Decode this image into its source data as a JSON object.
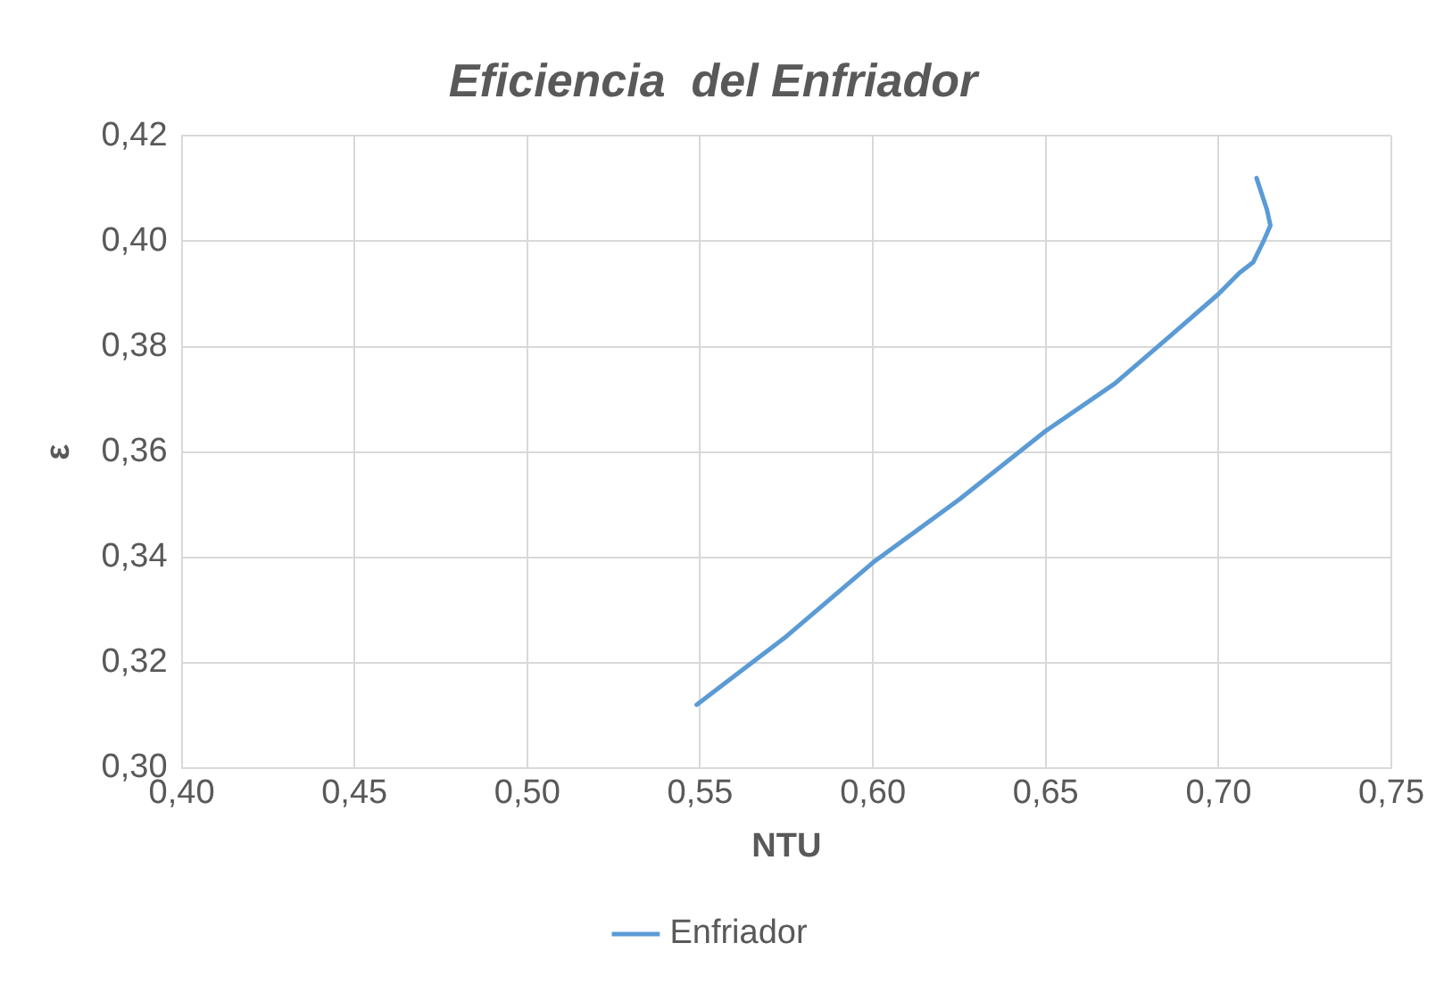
{
  "chart_data": {
    "type": "line",
    "title": "Eficiencia  del Enfriador",
    "xlabel": "NTU",
    "ylabel": "ε",
    "x": [
      0.549,
      0.575,
      0.6,
      0.625,
      0.65,
      0.67,
      0.686,
      0.7,
      0.706,
      0.71,
      0.713,
      0.715,
      0.714,
      0.711
    ],
    "series": [
      {
        "name": "Enfriador",
        "color": "#5b9bd5",
        "values": [
          0.312,
          0.325,
          0.339,
          0.351,
          0.364,
          0.373,
          0.382,
          0.39,
          0.394,
          0.396,
          0.4,
          0.403,
          0.406,
          0.412
        ]
      }
    ],
    "xlim": [
      0.4,
      0.75
    ],
    "xticks": [
      {
        "value": 0.4,
        "label": "0,40"
      },
      {
        "value": 0.45,
        "label": "0,45"
      },
      {
        "value": 0.5,
        "label": "0,50"
      },
      {
        "value": 0.55,
        "label": "0,55"
      },
      {
        "value": 0.6,
        "label": "0,60"
      },
      {
        "value": 0.65,
        "label": "0,65"
      },
      {
        "value": 0.7,
        "label": "0,70"
      },
      {
        "value": 0.75,
        "label": "0,75"
      }
    ],
    "ylim": [
      0.3,
      0.42
    ],
    "yticks": [
      {
        "value": 0.3,
        "label": "0,30"
      },
      {
        "value": 0.32,
        "label": "0,32"
      },
      {
        "value": 0.34,
        "label": "0,34"
      },
      {
        "value": 0.36,
        "label": "0,36"
      },
      {
        "value": 0.38,
        "label": "0,38"
      },
      {
        "value": 0.4,
        "label": "0,40"
      },
      {
        "value": 0.42,
        "label": "0,42"
      }
    ],
    "grid": true,
    "legend": "bottom",
    "marker": "none",
    "line_style": "solid"
  }
}
